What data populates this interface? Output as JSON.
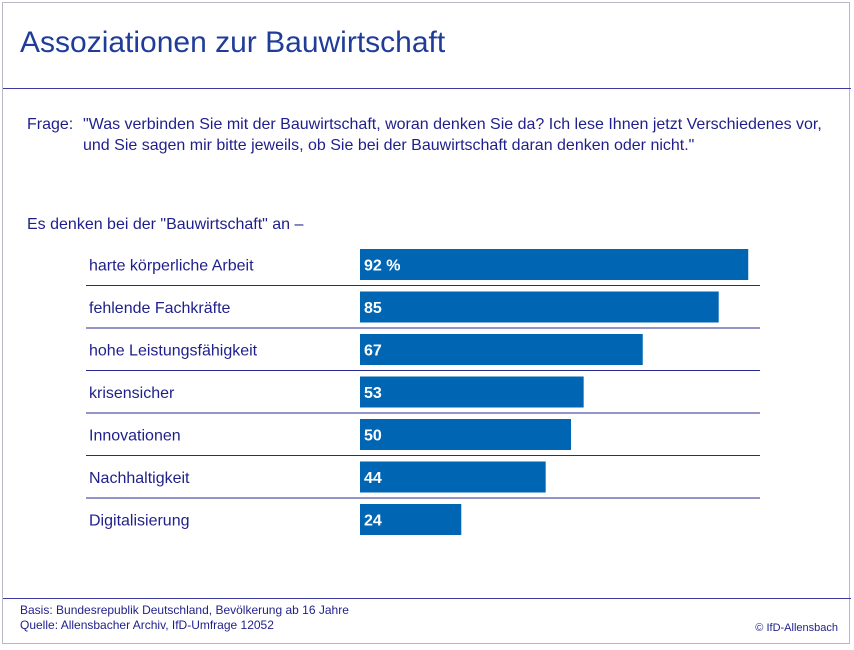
{
  "title": "Assoziationen zur Bauwirtschaft",
  "question": {
    "label": "Frage:",
    "text": "\"Was verbinden Sie mit der Bauwirtschaft, woran denken Sie da? Ich lese Ihnen jetzt Verschiedenes vor, und Sie sagen mir bitte jeweils, ob Sie bei der Bauwirtschaft daran denken oder nicht.\""
  },
  "intro": "Es denken bei der \"Bauwirtschaft\" an –",
  "chart_data": {
    "type": "bar",
    "orientation": "horizontal",
    "categories": [
      "harte körperliche Arbeit",
      "fehlende Fachkräfte",
      "hohe Leistungsfähigkeit",
      "krisensicher",
      "Innovationen",
      "Nachhaltigkeit",
      "Digitalisierung"
    ],
    "values": [
      92,
      85,
      67,
      53,
      50,
      44,
      24
    ],
    "value_labels": [
      "92 %",
      "85",
      "67",
      "53",
      "50",
      "44",
      "24"
    ],
    "unit": "%",
    "xlim": [
      0,
      100
    ],
    "bar_color": "#0066b3",
    "grid": false
  },
  "footer": {
    "basis": "Basis: Bundesrepublik Deutschland, Bevölkerung ab 16 Jahre",
    "source": "Quelle: Allensbacher Archiv, IfD-Umfrage 12052",
    "copyright": "© IfD-Allensbach"
  }
}
